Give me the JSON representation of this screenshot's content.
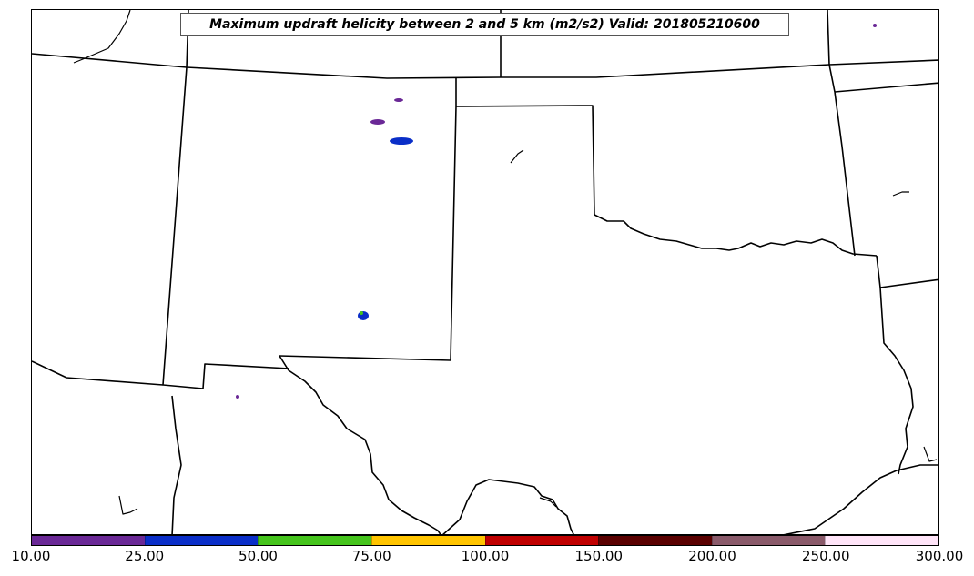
{
  "title": "Maximum updraft helicity between 2 and 5 km (m2/s2) Valid: 201805210600",
  "colorbar": {
    "ticks": [
      "10.00",
      "25.00",
      "50.00",
      "75.00",
      "100.00",
      "150.00",
      "200.00",
      "250.00",
      "300.00"
    ],
    "colors": [
      "#6a2896",
      "#0a2ec8",
      "#45c41c",
      "#ffc400",
      "#c00000",
      "#5a0000",
      "#8a5a6a",
      "#ffe4f8"
    ]
  },
  "helicity_cells": [
    {
      "color": "#6a2896"
    },
    {
      "color": "#6a2896"
    },
    {
      "color": "#0a2ec8"
    },
    {
      "color": "#0a2ec8"
    },
    {
      "color": "#45c41c"
    },
    {
      "color": "#6a2896"
    },
    {
      "color": "#6a2896"
    }
  ]
}
